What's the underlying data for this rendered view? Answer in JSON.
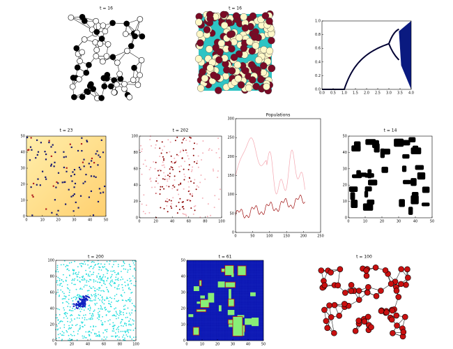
{
  "panels": [
    {
      "title": "t = 16"
    },
    {
      "title": "t = 16"
    },
    {
      "xticks": [
        "0.0",
        "0.5",
        "1.0",
        "1.5",
        "2.0",
        "2.5",
        "3.0",
        "3.5",
        "4.0"
      ],
      "yticks": [
        "0.0",
        "0.2",
        "0.4",
        "0.6",
        "0.8",
        "1.0"
      ]
    },
    {
      "title": "t = 23",
      "xticks": [
        "0",
        "10",
        "20",
        "30",
        "40",
        "50"
      ],
      "yticks": [
        "0",
        "10",
        "20",
        "30",
        "40",
        "50"
      ]
    },
    {
      "title": "t = 202",
      "xticks": [
        "0",
        "20",
        "40",
        "60",
        "80",
        "100"
      ],
      "yticks": [
        "0",
        "20",
        "40",
        "60",
        "80",
        "100"
      ]
    },
    {
      "title": "Populations",
      "xticks": [
        "0",
        "50",
        "100",
        "150",
        "200",
        "250"
      ],
      "yticks": [
        "0",
        "50",
        "100",
        "150",
        "200",
        "250",
        "300"
      ]
    },
    {
      "title": "t = 14",
      "xticks": [
        "0",
        "10",
        "20",
        "30",
        "40",
        "50"
      ],
      "yticks": [
        "0",
        "10",
        "20",
        "30",
        "40",
        "50"
      ]
    },
    {
      "title": "t = 200",
      "xticks": [
        "0",
        "20",
        "40",
        "60",
        "80",
        "100"
      ],
      "yticks": [
        "0",
        "20",
        "40",
        "60",
        "80",
        "100"
      ]
    },
    {
      "title": "t = 61",
      "xticks": [
        "0",
        "10",
        "20",
        "30",
        "40",
        "50"
      ],
      "yticks": [
        "0",
        "10",
        "20",
        "30",
        "40",
        "50"
      ]
    },
    {
      "title": "t = 100"
    }
  ]
}
